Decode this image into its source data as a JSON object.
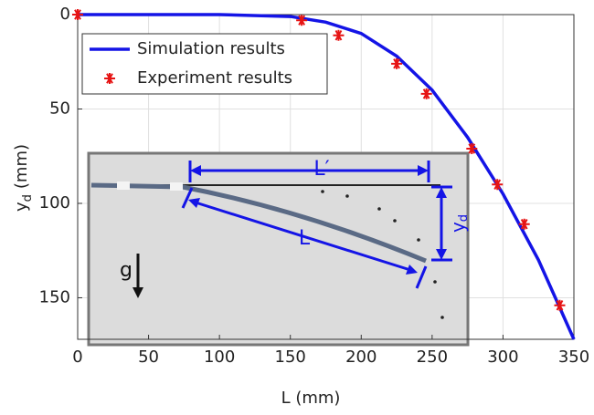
{
  "chart_data": {
    "type": "line",
    "xlabel": "L (mm)",
    "ylabel": {
      "main": "y",
      "sub": "d",
      "unit": "(mm)"
    },
    "xlim": [
      0,
      350
    ],
    "xticks": [
      0,
      50,
      100,
      150,
      200,
      250,
      300,
      350
    ],
    "ylim": [
      0,
      172
    ],
    "yticks": [
      0,
      50,
      100,
      150
    ],
    "y_reversed": true,
    "grid": true,
    "legend": "upper left",
    "series": [
      {
        "name": "Simulation results",
        "color": "#1414e6",
        "mode": "line",
        "x": [
          0,
          50,
          100,
          150,
          175,
          200,
          225,
          250,
          275,
          300,
          325,
          350
        ],
        "values": [
          0,
          0,
          0,
          1,
          4,
          10,
          22,
          40,
          65,
          95,
          130,
          172
        ]
      },
      {
        "name": "Experiment results",
        "color": "#e61414",
        "mode": "markers",
        "x": [
          0,
          158,
          184,
          225,
          246,
          278,
          296,
          315,
          340
        ],
        "values": [
          0,
          3,
          11,
          26,
          42,
          71,
          90,
          111,
          154
        ]
      }
    ],
    "inset": {
      "length_projected": "L′",
      "length": "L",
      "gravity": "g",
      "deflection": {
        "main": "y",
        "sub": "d"
      }
    }
  }
}
